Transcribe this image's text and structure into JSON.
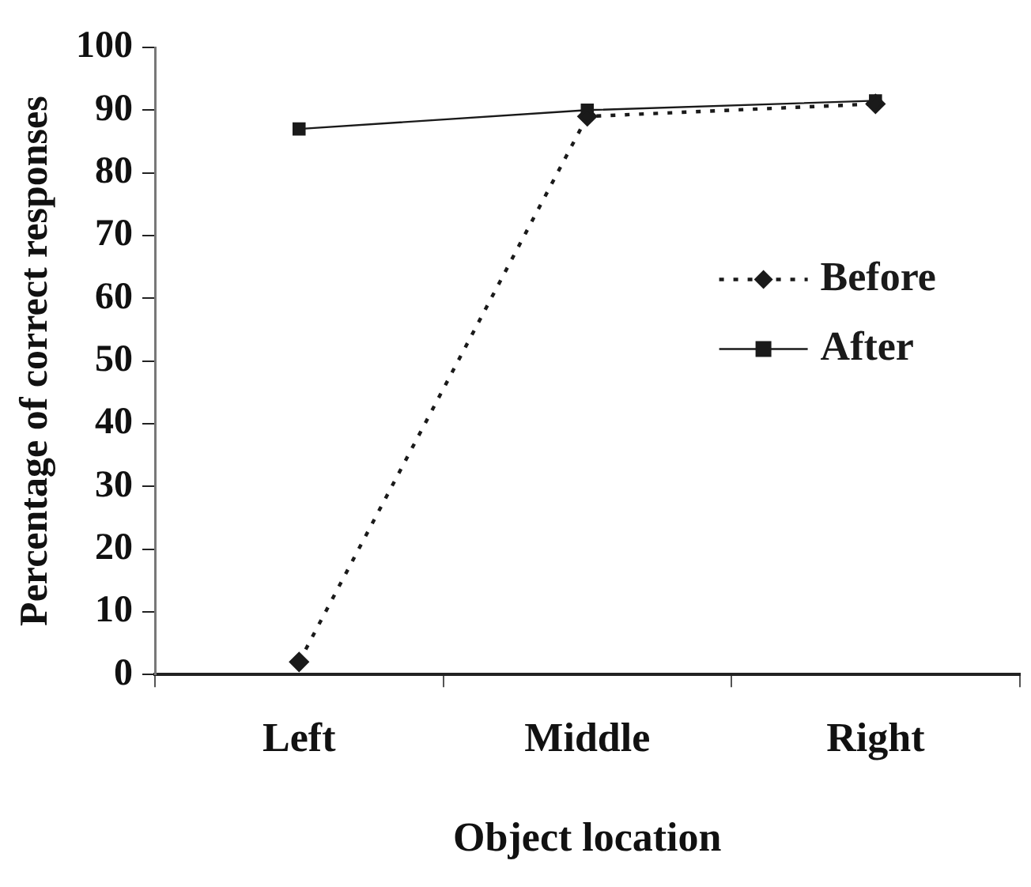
{
  "chart_data": {
    "type": "line",
    "xlabel": "Object location",
    "ylabel": "Percentage of correct responses",
    "categories": [
      "Left",
      "Middle",
      "Right"
    ],
    "series": [
      {
        "name": "Before",
        "color": "#1a1a1a",
        "values": [
          2,
          89,
          91
        ],
        "line_style": "dotted",
        "marker": "diamond"
      },
      {
        "name": "After",
        "color": "#1a1a1a",
        "values": [
          87,
          90,
          91.5
        ],
        "line_style": "solid",
        "marker": "square"
      }
    ],
    "ylim": [
      0,
      100
    ],
    "yticks": [
      0,
      10,
      20,
      30,
      40,
      50,
      60,
      70,
      80,
      90,
      100
    ],
    "grid": false,
    "legend": "right"
  }
}
